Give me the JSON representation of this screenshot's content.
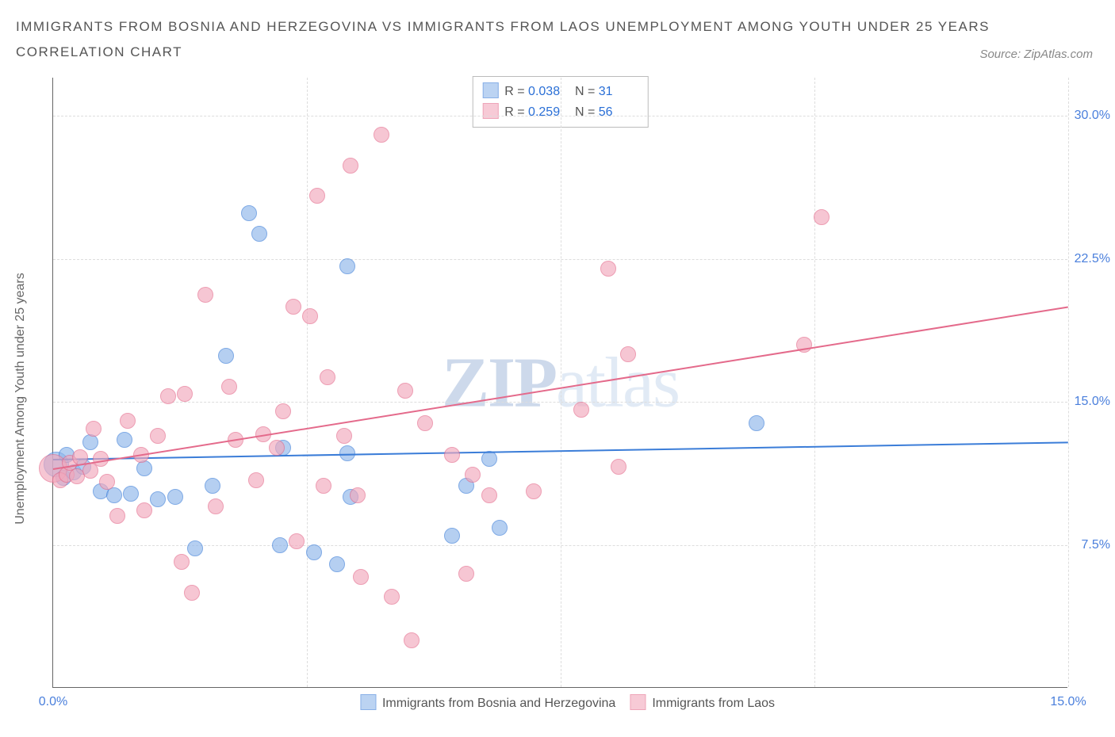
{
  "title_line1": "Immigrants from Bosnia and Herzegovina vs Immigrants from Laos Unemployment Among Youth under 25 years",
  "title_line2": "Correlation Chart",
  "source_label": "Source: ZipAtlas.com",
  "ylabel": "Unemployment Among Youth under 25 years",
  "watermark_bold": "ZIP",
  "watermark_rest": "atlas",
  "chart": {
    "type": "scatter",
    "background_color": "#ffffff",
    "grid_color": "#dddddd",
    "axis_color": "#666666",
    "tick_color": "#4a7fdc",
    "tick_fontsize": 16,
    "label_fontsize": 16,
    "xlim": [
      0,
      15
    ],
    "ylim": [
      0,
      32
    ],
    "xticks": [
      {
        "v": 0,
        "label": "0.0%"
      },
      {
        "v": 15,
        "label": "15.0%"
      }
    ],
    "yticks": [
      {
        "v": 7.5,
        "label": "7.5%"
      },
      {
        "v": 15,
        "label": "15.0%"
      },
      {
        "v": 22.5,
        "label": "22.5%"
      },
      {
        "v": 30,
        "label": "30.0%"
      }
    ],
    "x_gridlines": [
      3.75,
      7.5,
      11.25,
      15
    ],
    "marker_radius": 10,
    "marker_fill_opacity": 0.3,
    "marker_stroke_width": 1.5,
    "series": [
      {
        "name": "Immigrants from Bosnia and Herzegovina",
        "legend_label": "Immigrants from Bosnia and Herzegovina",
        "color_stroke": "#3b7dd8",
        "color_fill": "#8fb6ea",
        "R": "0.038",
        "N": "31",
        "trend": {
          "x1": 0,
          "y1": 12.0,
          "x2": 15,
          "y2": 12.9,
          "width": 2
        },
        "points": [
          {
            "x": 0.05,
            "y": 11.7,
            "r": 16
          },
          {
            "x": 0.15,
            "y": 11.0
          },
          {
            "x": 0.2,
            "y": 12.2
          },
          {
            "x": 0.3,
            "y": 11.3
          },
          {
            "x": 0.45,
            "y": 11.6
          },
          {
            "x": 0.55,
            "y": 12.9
          },
          {
            "x": 0.7,
            "y": 10.3
          },
          {
            "x": 0.9,
            "y": 10.1
          },
          {
            "x": 1.05,
            "y": 13.0
          },
          {
            "x": 1.15,
            "y": 10.2
          },
          {
            "x": 1.35,
            "y": 11.5
          },
          {
            "x": 1.55,
            "y": 9.9
          },
          {
            "x": 1.8,
            "y": 10.0
          },
          {
            "x": 2.1,
            "y": 7.3
          },
          {
            "x": 2.35,
            "y": 10.6
          },
          {
            "x": 2.55,
            "y": 17.4
          },
          {
            "x": 2.9,
            "y": 24.9
          },
          {
            "x": 3.05,
            "y": 23.8
          },
          {
            "x": 3.35,
            "y": 7.5
          },
          {
            "x": 3.4,
            "y": 12.6
          },
          {
            "x": 3.85,
            "y": 7.1
          },
          {
            "x": 4.2,
            "y": 6.5
          },
          {
            "x": 4.35,
            "y": 12.3
          },
          {
            "x": 4.35,
            "y": 22.1
          },
          {
            "x": 4.4,
            "y": 10.0
          },
          {
            "x": 5.9,
            "y": 8.0
          },
          {
            "x": 6.1,
            "y": 10.6
          },
          {
            "x": 6.45,
            "y": 12.0
          },
          {
            "x": 6.6,
            "y": 8.4
          },
          {
            "x": 10.4,
            "y": 13.9
          }
        ]
      },
      {
        "name": "Immigrants from Laos",
        "legend_label": "Immigrants from Laos",
        "color_stroke": "#e46a8b",
        "color_fill": "#f2a8bc",
        "R": "0.259",
        "N": "56",
        "trend": {
          "x1": 0,
          "y1": 11.5,
          "x2": 15,
          "y2": 20.0,
          "width": 2
        },
        "points": [
          {
            "x": 0.0,
            "y": 11.5,
            "r": 18
          },
          {
            "x": 0.1,
            "y": 10.9
          },
          {
            "x": 0.2,
            "y": 11.2
          },
          {
            "x": 0.25,
            "y": 11.8
          },
          {
            "x": 0.35,
            "y": 11.1
          },
          {
            "x": 0.4,
            "y": 12.1
          },
          {
            "x": 0.55,
            "y": 11.4
          },
          {
            "x": 0.6,
            "y": 13.6
          },
          {
            "x": 0.7,
            "y": 12.0
          },
          {
            "x": 0.8,
            "y": 10.8
          },
          {
            "x": 0.95,
            "y": 9.0
          },
          {
            "x": 1.1,
            "y": 14.0
          },
          {
            "x": 1.3,
            "y": 12.2
          },
          {
            "x": 1.35,
            "y": 9.3
          },
          {
            "x": 1.55,
            "y": 13.2
          },
          {
            "x": 1.7,
            "y": 15.3
          },
          {
            "x": 1.9,
            "y": 6.6
          },
          {
            "x": 1.95,
            "y": 15.4
          },
          {
            "x": 2.05,
            "y": 5.0
          },
          {
            "x": 2.25,
            "y": 20.6
          },
          {
            "x": 2.4,
            "y": 9.5
          },
          {
            "x": 2.6,
            "y": 15.8
          },
          {
            "x": 2.7,
            "y": 13.0
          },
          {
            "x": 3.0,
            "y": 10.9
          },
          {
            "x": 3.1,
            "y": 13.3
          },
          {
            "x": 3.3,
            "y": 12.6
          },
          {
            "x": 3.4,
            "y": 14.5
          },
          {
            "x": 3.55,
            "y": 20.0
          },
          {
            "x": 3.6,
            "y": 7.7
          },
          {
            "x": 3.8,
            "y": 19.5
          },
          {
            "x": 3.9,
            "y": 25.8
          },
          {
            "x": 4.0,
            "y": 10.6
          },
          {
            "x": 4.05,
            "y": 16.3
          },
          {
            "x": 4.3,
            "y": 13.2
          },
          {
            "x": 4.4,
            "y": 27.4
          },
          {
            "x": 4.5,
            "y": 10.1
          },
          {
            "x": 4.55,
            "y": 5.8
          },
          {
            "x": 4.85,
            "y": 29.0
          },
          {
            "x": 5.0,
            "y": 4.8
          },
          {
            "x": 5.2,
            "y": 15.6
          },
          {
            "x": 5.3,
            "y": 2.5
          },
          {
            "x": 5.5,
            "y": 13.9
          },
          {
            "x": 5.9,
            "y": 12.2
          },
          {
            "x": 6.1,
            "y": 6.0
          },
          {
            "x": 6.2,
            "y": 11.2
          },
          {
            "x": 6.45,
            "y": 10.1
          },
          {
            "x": 7.1,
            "y": 10.3
          },
          {
            "x": 7.8,
            "y": 14.6
          },
          {
            "x": 8.2,
            "y": 22.0
          },
          {
            "x": 8.35,
            "y": 11.6
          },
          {
            "x": 8.5,
            "y": 17.5
          },
          {
            "x": 11.1,
            "y": 18.0
          },
          {
            "x": 11.35,
            "y": 24.7
          }
        ]
      }
    ]
  },
  "legend_box": {
    "r_label": "R =",
    "n_label": "N ="
  }
}
